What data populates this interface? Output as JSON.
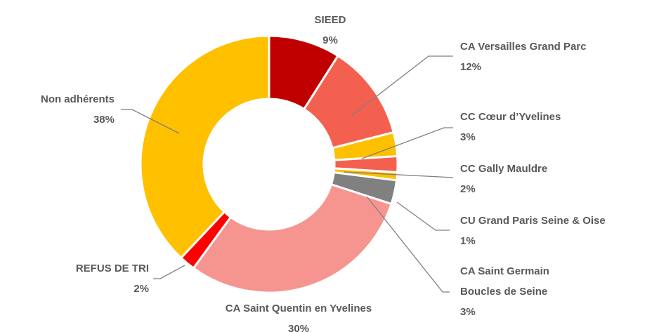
{
  "chart_data": {
    "type": "donut",
    "categories": [
      "SIEED",
      "CA Versailles Grand Parc",
      "CC Cœur d’Yvelines",
      "CC Gally Mauldre",
      "CU Grand Paris Seine & Oise",
      "CA Saint Germain Boucles de Seine",
      "CA Saint Quentin en Yvelines",
      "REFUS DE TRI",
      "Non adhérents"
    ],
    "values": [
      9,
      12,
      3,
      2,
      1,
      3,
      30,
      2,
      38
    ],
    "value_labels": [
      "9%",
      "12%",
      "3%",
      "2%",
      "1%",
      "3%",
      "30%",
      "2%",
      "38%"
    ],
    "colors": [
      "#c00000",
      "#f4604f",
      "#ffc000",
      "#f4604f",
      "#ffc000",
      "#808080",
      "#f69590",
      "#ff0000",
      "#ffc000"
    ]
  }
}
